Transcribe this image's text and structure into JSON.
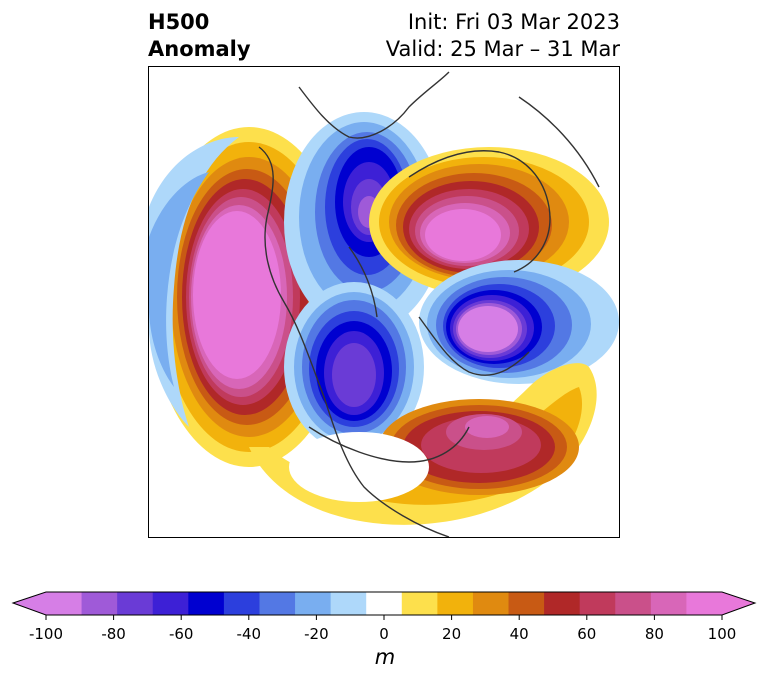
{
  "title": {
    "left_line1": "H500",
    "left_line2": "Anomaly",
    "right_line1": "Init: Fri 03 Mar 2023",
    "right_line2": "Valid: 25 Mar – 31 Mar"
  },
  "colorbar": {
    "unit": "m",
    "ticks": [
      "-100",
      "-80",
      "-60",
      "-40",
      "-20",
      "0",
      "20",
      "40",
      "60",
      "80",
      "100"
    ],
    "levels": [
      -100,
      -90,
      -80,
      -70,
      -60,
      -50,
      -40,
      -30,
      -20,
      -10,
      10,
      20,
      30,
      40,
      50,
      60,
      70,
      80,
      90,
      100
    ],
    "colors": [
      "#d67ee6",
      "#9f5ad8",
      "#6a3bd6",
      "#3d20d6",
      "#0000d0",
      "#2c3fdd",
      "#5378e4",
      "#79aef0",
      "#aed8fa",
      "#ffffff",
      "#fde04c",
      "#f2b20c",
      "#e08a10",
      "#c85a14",
      "#b02828",
      "#c03a5c",
      "#ca508a",
      "#d866b8",
      "#e878da"
    ],
    "extend_low": "#d67ee6",
    "extend_high": "#e878da"
  },
  "map": {
    "projection": "north-polar-stereographic",
    "field": "500 hPa geopotential height anomaly"
  }
}
